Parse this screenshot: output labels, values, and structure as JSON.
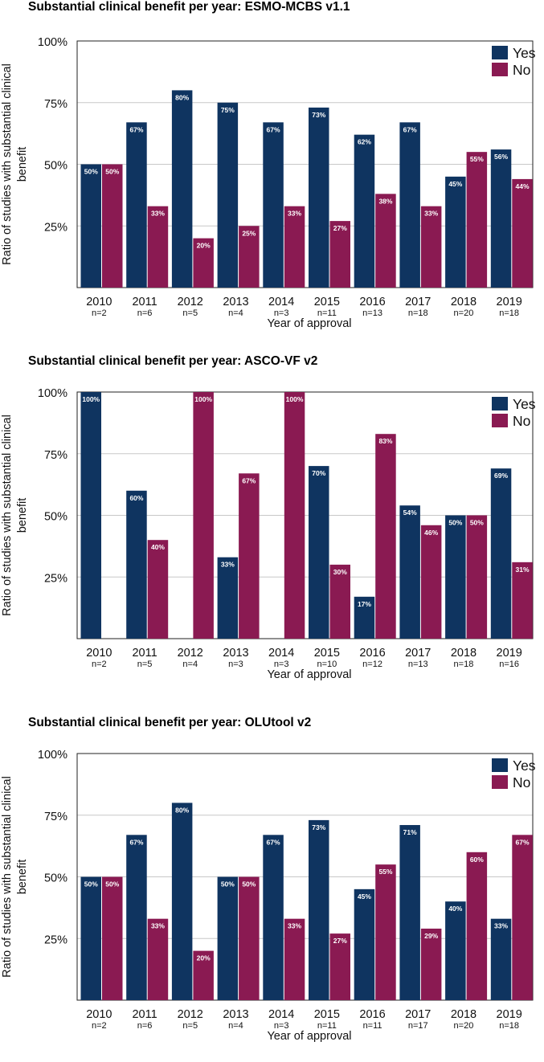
{
  "chart_data": [
    {
      "type": "bar",
      "title": "Substantial clinical benefit per year: ESMO-MCBS v1.1",
      "xlabel": "Year of approval",
      "ylabel": "Ratio of studies with substantial clinical benefit",
      "ylim": [
        0,
        100
      ],
      "yticks": [
        "25%",
        "50%",
        "75%",
        "100%"
      ],
      "grid": true,
      "legend_position": "top-right",
      "categories": [
        "2010",
        "2011",
        "2012",
        "2013",
        "2014",
        "2015",
        "2016",
        "2017",
        "2018",
        "2019"
      ],
      "n_labels": [
        "n=2",
        "n=6",
        "n=5",
        "n=4",
        "n=3",
        "n=11",
        "n=13",
        "n=18",
        "n=20",
        "n=18"
      ],
      "series": [
        {
          "name": "Yes",
          "color": "#0f3460",
          "values": [
            50,
            67,
            80,
            75,
            67,
            73,
            62,
            67,
            45,
            56
          ]
        },
        {
          "name": "No",
          "color": "#8a1a52",
          "values": [
            50,
            33,
            20,
            25,
            33,
            27,
            38,
            33,
            55,
            44
          ]
        }
      ]
    },
    {
      "type": "bar",
      "title": "Substantial clinical benefit per year: ASCO-VF v2",
      "xlabel": "Year of approval",
      "ylabel": "Ratio of studies with substantial clinical benefit",
      "ylim": [
        0,
        100
      ],
      "yticks": [
        "25%",
        "50%",
        "75%",
        "100%"
      ],
      "grid": true,
      "legend_position": "top-right",
      "categories": [
        "2010",
        "2011",
        "2012",
        "2013",
        "2014",
        "2015",
        "2016",
        "2017",
        "2018",
        "2019"
      ],
      "n_labels": [
        "n=2",
        "n=5",
        "n=4",
        "n=3",
        "n=3",
        "n=10",
        "n=12",
        "n=13",
        "n=18",
        "n=16"
      ],
      "series": [
        {
          "name": "Yes",
          "color": "#0f3460",
          "values": [
            100,
            60,
            0,
            33,
            0,
            70,
            17,
            54,
            50,
            69
          ]
        },
        {
          "name": "No",
          "color": "#8a1a52",
          "values": [
            0,
            40,
            100,
            67,
            100,
            30,
            83,
            46,
            50,
            31
          ]
        }
      ]
    },
    {
      "type": "bar",
      "title": "Substantial clinical benefit per year: OLUtool v2",
      "xlabel": "Year of approval",
      "ylabel": "Ratio of studies with substantial clinical benefit",
      "ylim": [
        0,
        100
      ],
      "yticks": [
        "25%",
        "50%",
        "75%",
        "100%"
      ],
      "grid": true,
      "legend_position": "top-right",
      "categories": [
        "2010",
        "2011",
        "2012",
        "2013",
        "2014",
        "2015",
        "2016",
        "2017",
        "2018",
        "2019"
      ],
      "n_labels": [
        "n=2",
        "n=6",
        "n=5",
        "n=4",
        "n=3",
        "n=11",
        "n=11",
        "n=17",
        "n=20",
        "n=18"
      ],
      "series": [
        {
          "name": "Yes",
          "color": "#0f3460",
          "values": [
            50,
            67,
            80,
            50,
            67,
            73,
            45,
            71,
            40,
            33
          ]
        },
        {
          "name": "No",
          "color": "#8a1a52",
          "values": [
            50,
            33,
            20,
            50,
            33,
            27,
            55,
            29,
            60,
            67
          ]
        }
      ]
    }
  ]
}
